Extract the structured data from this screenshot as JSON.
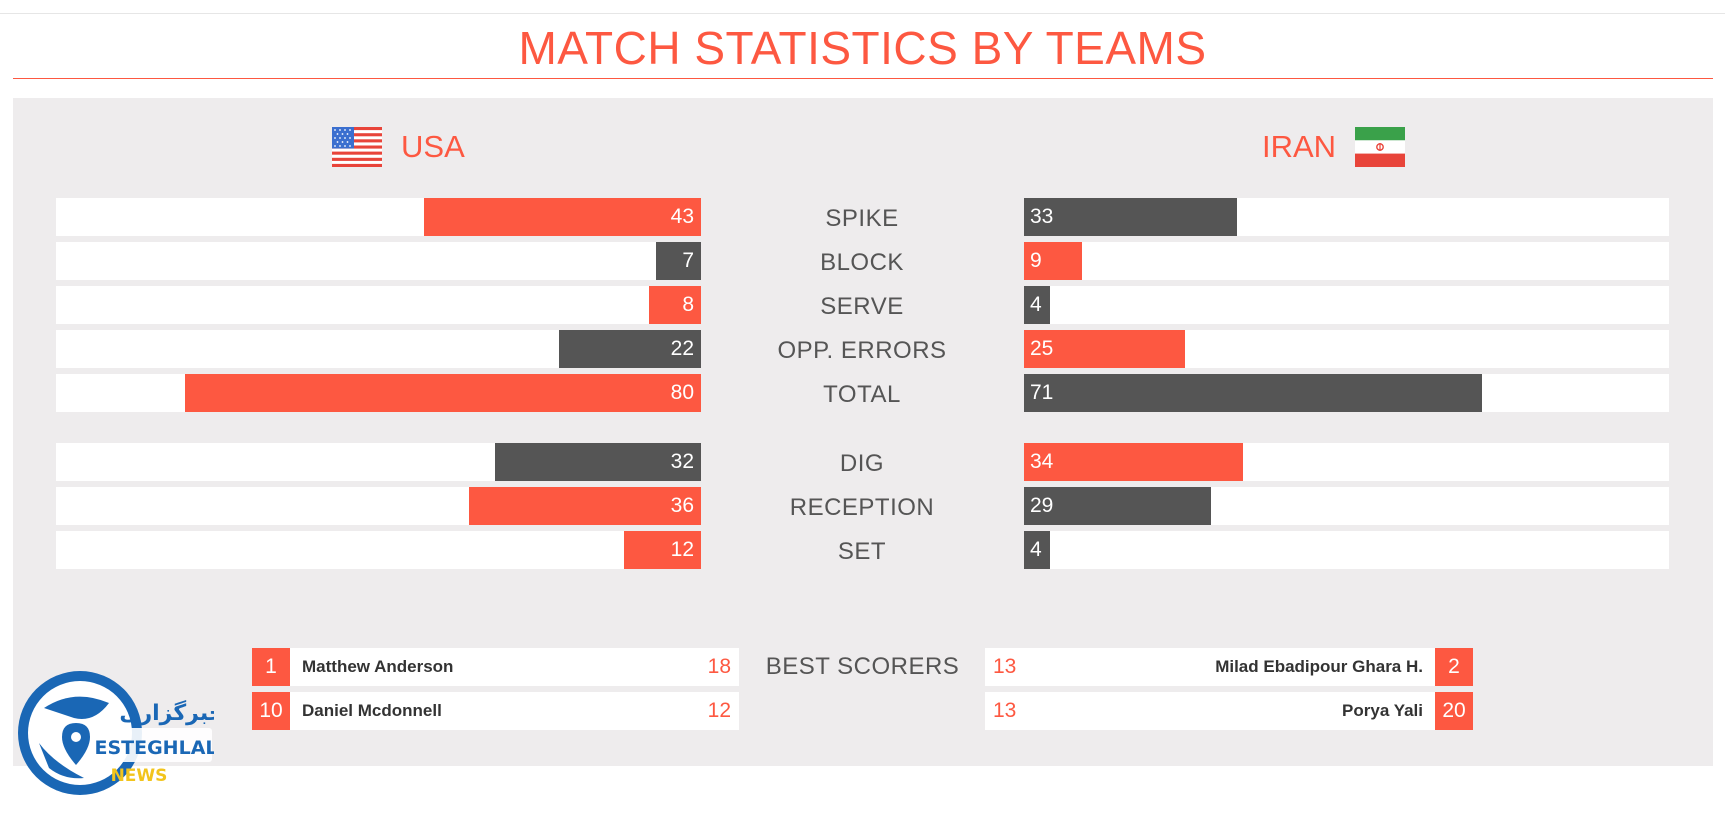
{
  "page": {
    "title": "MATCH STATISTICS BY TEAMS"
  },
  "colors": {
    "accent": "#fd5841",
    "dark": "#555555",
    "panel": "#eeeced"
  },
  "teams": {
    "home": {
      "name": "USA",
      "flag_icon": "usa-flag-icon"
    },
    "away": {
      "name": "IRAN",
      "flag_icon": "iran-flag-icon"
    }
  },
  "chart_data": {
    "type": "bar",
    "title": "MATCH STATISTICS BY TEAMS",
    "series": [
      {
        "name": "USA",
        "values": [
          43,
          7,
          8,
          22,
          80,
          32,
          36,
          12
        ]
      },
      {
        "name": "IRAN",
        "values": [
          33,
          9,
          4,
          25,
          71,
          34,
          29,
          4
        ]
      }
    ],
    "categories": [
      "SPIKE",
      "BLOCK",
      "SERVE",
      "OPP. ERRORS",
      "TOTAL",
      "DIG",
      "RECEPTION",
      "SET"
    ],
    "groups": [
      [
        0,
        1,
        2,
        3,
        4
      ],
      [
        5,
        6,
        7
      ]
    ],
    "scale_max": 100,
    "xlabel": "",
    "ylabel": ""
  },
  "best_scorers": {
    "label": "BEST SCORERS",
    "home": [
      {
        "number": "1",
        "name": "Matthew Anderson",
        "points": "18"
      },
      {
        "number": "10",
        "name": "Daniel Mcdonnell",
        "points": "12"
      }
    ],
    "away": [
      {
        "number": "2",
        "name": "Milad Ebadipour Ghara H.",
        "points": "13"
      },
      {
        "number": "20",
        "name": "Porya Yali",
        "points": "13"
      }
    ]
  },
  "watermark": {
    "line1": "خبرگزاری",
    "line2": "ESTEGHLAL",
    "line3": "NEWS"
  }
}
